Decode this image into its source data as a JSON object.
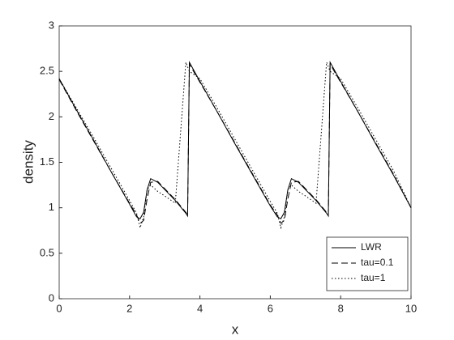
{
  "chart_data": {
    "type": "line",
    "x_label": "x",
    "y_label": "density",
    "x": [
      0,
      0.5,
      1,
      1.5,
      2,
      2.2,
      2.3,
      2.4,
      2.5,
      2.6,
      2.8,
      3,
      3.3,
      3.6,
      3.65,
      3.7,
      4,
      4.5,
      5,
      5.5,
      6,
      6.2,
      6.3,
      6.4,
      6.5,
      6.6,
      6.8,
      7,
      7.3,
      7.6,
      7.65,
      7.7,
      8,
      8.5,
      9,
      9.5,
      10
    ],
    "series": [
      {
        "name": "LWR",
        "color": "#000000",
        "style": "solid",
        "values": [
          2.42,
          2.07,
          1.73,
          1.38,
          1.04,
          0.9,
          0.88,
          0.95,
          1.2,
          1.32,
          1.28,
          1.2,
          1.08,
          0.94,
          0.91,
          2.6,
          2.39,
          2.05,
          1.7,
          1.36,
          1.02,
          0.9,
          0.88,
          0.95,
          1.2,
          1.32,
          1.28,
          1.2,
          1.08,
          0.94,
          0.91,
          2.6,
          2.39,
          2.05,
          1.7,
          1.36,
          1.0
        ]
      },
      {
        "name": "tau=0.1",
        "color": "#000000",
        "style": "dashed",
        "values": [
          2.41,
          2.06,
          1.72,
          1.38,
          1.05,
          0.92,
          0.83,
          0.86,
          1.1,
          1.28,
          1.29,
          1.21,
          1.09,
          0.95,
          0.92,
          2.58,
          2.38,
          2.05,
          1.71,
          1.37,
          1.03,
          0.92,
          0.83,
          0.86,
          1.1,
          1.28,
          1.29,
          1.21,
          1.09,
          0.95,
          0.92,
          2.58,
          2.38,
          2.05,
          1.71,
          1.37,
          1.0
        ]
      },
      {
        "name": "tau=1",
        "color": "#000000",
        "style": "dotted",
        "values": [
          2.42,
          2.09,
          1.76,
          1.42,
          1.08,
          0.94,
          0.78,
          0.9,
          1.2,
          1.25,
          1.18,
          1.13,
          1.05,
          2.6,
          2.55,
          2.5,
          2.42,
          2.09,
          1.75,
          1.41,
          1.07,
          0.94,
          0.78,
          0.9,
          1.2,
          1.25,
          1.18,
          1.13,
          1.05,
          2.6,
          2.55,
          2.5,
          2.42,
          2.09,
          1.75,
          1.41,
          1.0
        ]
      }
    ],
    "xlim": [
      0,
      10
    ],
    "xticks": [
      0,
      2,
      4,
      6,
      8,
      10
    ],
    "ylim": [
      0,
      3
    ],
    "yticks": [
      0,
      0.5,
      1,
      1.5,
      2,
      2.5,
      3
    ],
    "grid": false,
    "legend": "bottom-right"
  }
}
